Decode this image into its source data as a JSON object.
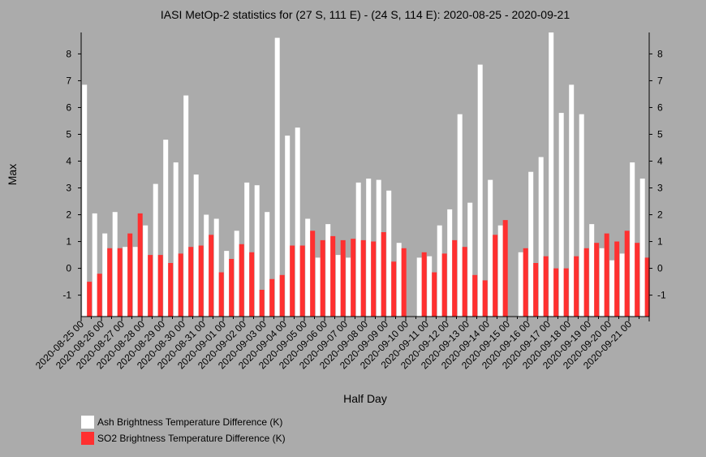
{
  "chart_data": {
    "type": "bar",
    "title": "IASI MetOp-2 statistics for (27 S, 111 E) - (24 S, 114 E): 2020-08-25 - 2020-09-21",
    "xlabel": "Half Day",
    "ylabel": "Max",
    "ylim": [
      -1.8,
      8.8
    ],
    "yticks": [
      -1,
      0,
      1,
      2,
      3,
      4,
      5,
      6,
      7,
      8
    ],
    "grid": false,
    "legend_position": "bottom-left",
    "x_tick_labels": [
      "2020-08-25 00",
      "2020-08-26 00",
      "2020-08-27 00",
      "2020-08-28 00",
      "2020-08-29 00",
      "2020-08-30 00",
      "2020-08-31 00",
      "2020-09-01 00",
      "2020-09-02 00",
      "2020-09-03 00",
      "2020-09-04 00",
      "2020-09-05 00",
      "2020-09-06 00",
      "2020-09-07 00",
      "2020-09-08 00",
      "2020-09-09 00",
      "2020-09-10 00",
      "2020-09-11 00",
      "2020-09-12 00",
      "2020-09-13 00",
      "2020-09-14 00",
      "2020-09-15 00",
      "2020-09-16 00",
      "2020-09-17 00",
      "2020-09-18 00",
      "2020-09-19 00",
      "2020-09-20 00",
      "2020-09-21 00"
    ],
    "series": [
      {
        "name": "Ash Brightness Temperature Difference (K)",
        "color": "#ffffff",
        "values": [
          6.85,
          2.05,
          1.3,
          2.1,
          0.8,
          0.8,
          1.6,
          3.15,
          4.8,
          3.95,
          6.45,
          3.5,
          2.0,
          1.85,
          0.65,
          1.4,
          3.2,
          3.1,
          2.1,
          8.6,
          4.95,
          5.25,
          1.85,
          0.4,
          1.65,
          0.5,
          0.4,
          3.2,
          3.35,
          3.3,
          2.9,
          0.95,
          null,
          0.4,
          0.45,
          1.6,
          2.2,
          5.75,
          2.45,
          7.6,
          3.3,
          1.6,
          null,
          0.6,
          3.6,
          4.15,
          8.8,
          5.8,
          6.85,
          5.75,
          1.65,
          0.75,
          0.3,
          0.55,
          3.95,
          3.35
        ]
      },
      {
        "name": "SO2 Brightness Temperature Difference (K)",
        "color": "#ff3030",
        "values": [
          -0.5,
          -0.2,
          0.75,
          0.75,
          1.3,
          2.05,
          0.5,
          0.5,
          0.2,
          0.55,
          0.8,
          0.85,
          1.25,
          -0.15,
          0.35,
          0.9,
          0.6,
          -0.8,
          -0.4,
          -0.25,
          0.85,
          0.85,
          1.4,
          1.05,
          1.2,
          1.05,
          1.1,
          1.05,
          1.0,
          1.35,
          0.25,
          0.75,
          null,
          0.6,
          -0.15,
          0.55,
          1.05,
          0.8,
          -0.25,
          -0.45,
          1.25,
          1.8,
          null,
          0.75,
          0.2,
          0.45,
          0.0,
          0.0,
          0.45,
          0.75,
          0.95,
          1.3,
          1.0,
          1.4,
          0.95,
          0.4
        ]
      }
    ]
  }
}
